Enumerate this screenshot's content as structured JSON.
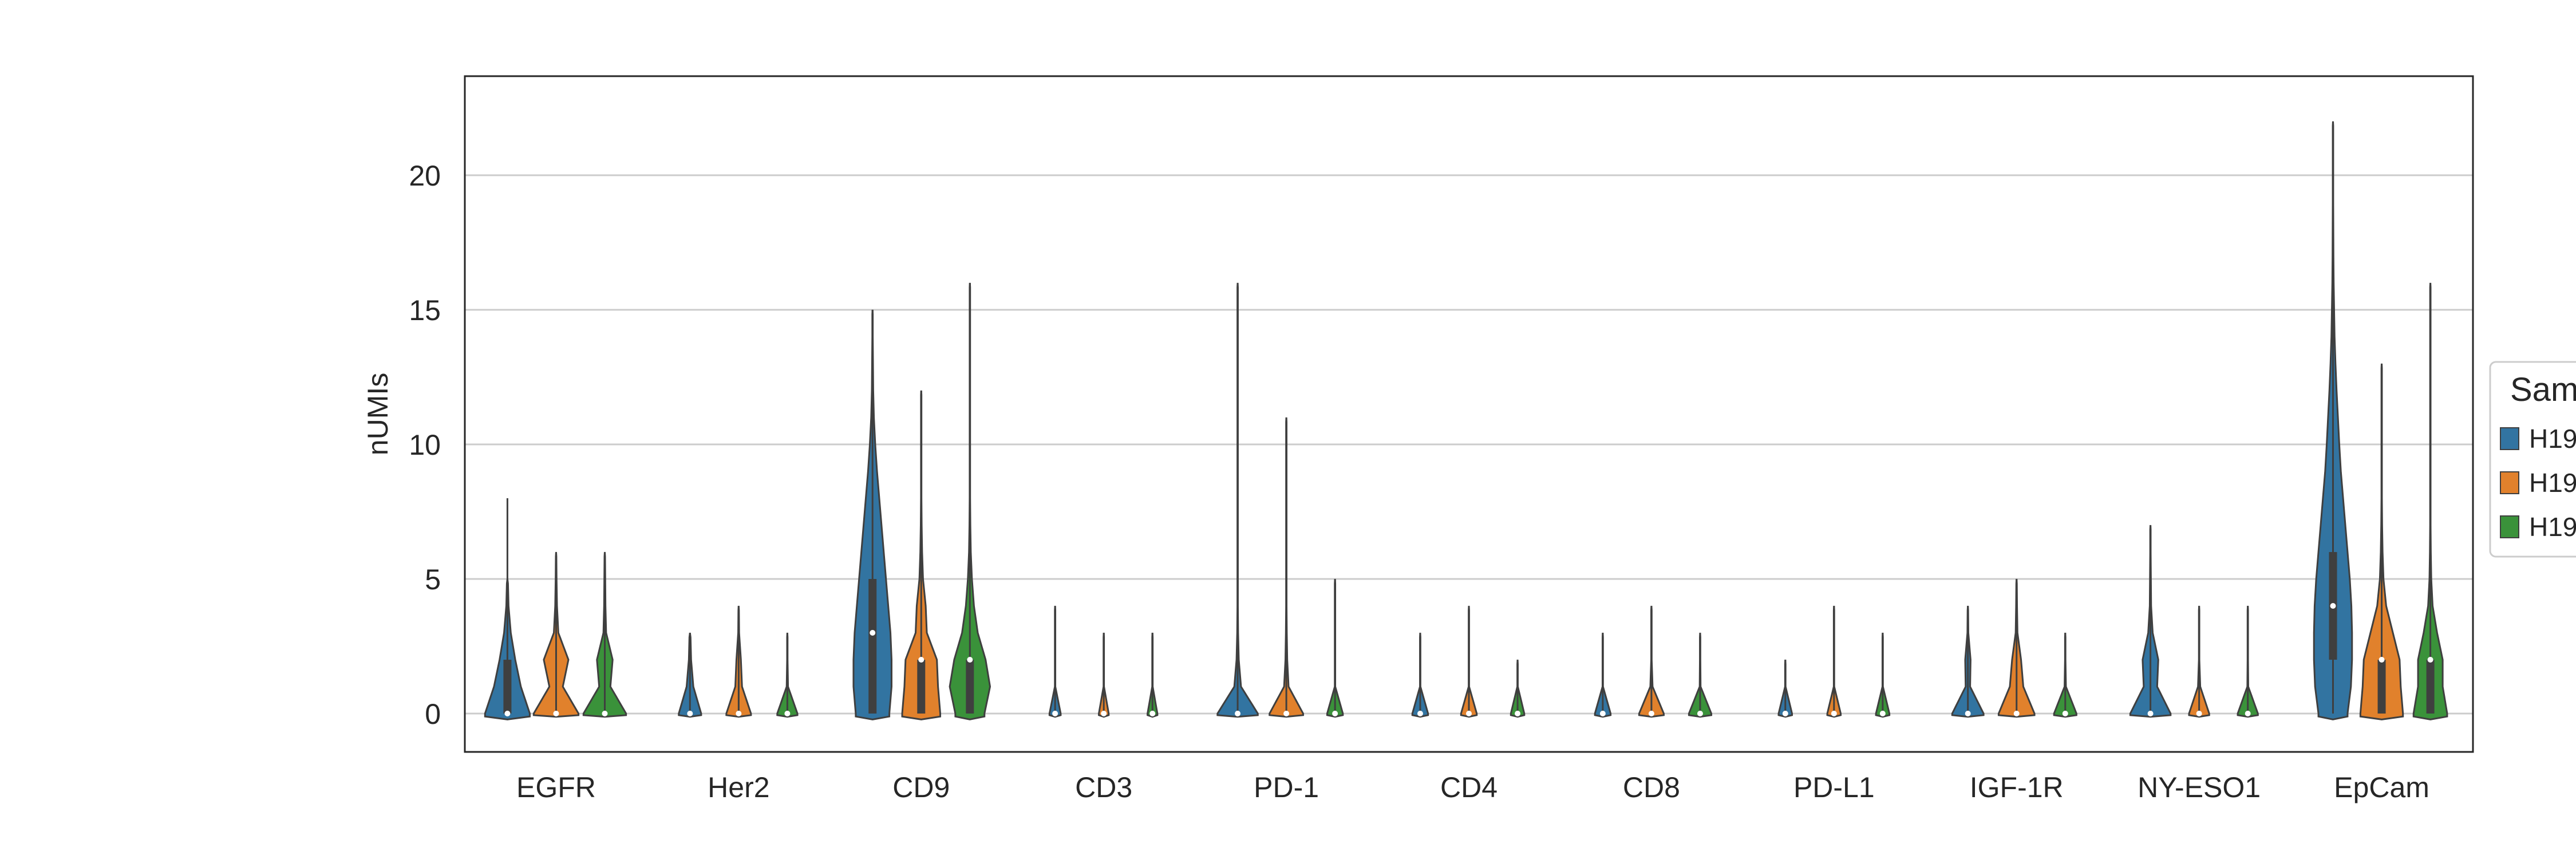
{
  "chart_data": {
    "type": "violin",
    "title": "",
    "xlabel": "",
    "ylabel": "nUMIs",
    "ylim": [
      -1.3,
      23.2
    ],
    "yticks": [
      0,
      5,
      10,
      15,
      20
    ],
    "grid": "horizontal",
    "categories": [
      "EGFR",
      "Her2",
      "CD9",
      "CD3",
      "PD-1",
      "CD4",
      "CD8",
      "PD-L1",
      "IGF-1R",
      "NY-ESO1",
      "EpCam"
    ],
    "legend": {
      "title": "Sam",
      "placement": "right",
      "entries": [
        "H19",
        "H19",
        "H19"
      ]
    },
    "colors": [
      "#3274a1",
      "#e1812c",
      "#3a923a"
    ],
    "series": [
      {
        "name": "H19",
        "color": "#3274a1",
        "values": [
          {
            "max": 8,
            "median": 0,
            "q1": 0,
            "q3": 2,
            "widths": [
              1.0,
              0.6,
              0.35,
              0.15,
              0.05,
              0.02
            ]
          },
          {
            "max": 3,
            "median": 0,
            "q1": 0,
            "q3": 0,
            "widths": [
              0.5,
              0.15,
              0.05,
              0.02
            ]
          },
          {
            "max": 15,
            "median": 3,
            "q1": 0,
            "q3": 5,
            "widths": [
              0.75,
              0.85,
              0.85,
              0.8,
              0.7,
              0.6,
              0.5,
              0.4,
              0.3,
              0.2,
              0.12,
              0.06,
              0.03,
              0.02,
              0.01,
              0.01
            ]
          },
          {
            "max": 4,
            "median": 0,
            "q1": 0,
            "q3": 0,
            "widths": [
              0.25,
              0.01,
              0.01,
              0.01,
              0.01
            ]
          },
          {
            "max": 16,
            "median": 0,
            "q1": 0,
            "q3": 0,
            "widths": [
              0.9,
              0.15,
              0.05,
              0.02,
              0.01,
              0.01,
              0.01,
              0.01,
              0.01,
              0.01,
              0.01,
              0.01,
              0.01,
              0.01,
              0.01,
              0.01,
              0.01
            ]
          },
          {
            "max": 3,
            "median": 0,
            "q1": 0,
            "q3": 0,
            "widths": [
              0.35,
              0.01,
              0.01,
              0.01
            ]
          },
          {
            "max": 3,
            "median": 0,
            "q1": 0,
            "q3": 0,
            "widths": [
              0.35,
              0.01,
              0.01,
              0.01
            ]
          },
          {
            "max": 2,
            "median": 0,
            "q1": 0,
            "q3": 0,
            "widths": [
              0.3,
              0.01,
              0.01
            ]
          },
          {
            "max": 4,
            "median": 0,
            "q1": 0,
            "q3": 0,
            "widths": [
              0.7,
              0.1,
              0.12,
              0.02,
              0.01
            ]
          },
          {
            "max": 7,
            "median": 0,
            "q1": 0,
            "q3": 0,
            "widths": [
              0.9,
              0.3,
              0.35,
              0.1,
              0.03,
              0.02,
              0.01,
              0.01
            ]
          },
          {
            "max": 22,
            "median": 4,
            "q1": 2,
            "q3": 6,
            "widths": [
              0.65,
              0.8,
              0.85,
              0.85,
              0.82,
              0.75,
              0.65,
              0.55,
              0.45,
              0.35,
              0.28,
              0.22,
              0.16,
              0.11,
              0.07,
              0.05,
              0.03,
              0.02,
              0.015,
              0.01,
              0.01,
              0.01,
              0.01
            ]
          }
        ]
      },
      {
        "name": "H19",
        "color": "#e1812c",
        "values": [
          {
            "max": 6,
            "median": 0,
            "q1": 0,
            "q3": 0,
            "widths": [
              1.0,
              0.3,
              0.55,
              0.1,
              0.04,
              0.02,
              0.01
            ]
          },
          {
            "max": 4,
            "median": 0,
            "q1": 0,
            "q3": 0,
            "widths": [
              0.55,
              0.15,
              0.1,
              0.02,
              0.01
            ]
          },
          {
            "max": 12,
            "median": 2,
            "q1": 0,
            "q3": 2,
            "widths": [
              0.85,
              0.75,
              0.7,
              0.25,
              0.2,
              0.08,
              0.04,
              0.02,
              0.01,
              0.01,
              0.01,
              0.01,
              0.01
            ]
          },
          {
            "max": 3,
            "median": 0,
            "q1": 0,
            "q3": 0,
            "widths": [
              0.22,
              0.01,
              0.01,
              0.01
            ]
          },
          {
            "max": 11,
            "median": 0,
            "q1": 0,
            "q3": 0,
            "widths": [
              0.75,
              0.1,
              0.04,
              0.02,
              0.01,
              0.01,
              0.01,
              0.01,
              0.01,
              0.01,
              0.01,
              0.01
            ]
          },
          {
            "max": 4,
            "median": 0,
            "q1": 0,
            "q3": 0,
            "widths": [
              0.35,
              0.01,
              0.01,
              0.01,
              0.01
            ]
          },
          {
            "max": 4,
            "median": 0,
            "q1": 0,
            "q3": 0,
            "widths": [
              0.55,
              0.05,
              0.01,
              0.01,
              0.01
            ]
          },
          {
            "max": 4,
            "median": 0,
            "q1": 0,
            "q3": 0,
            "widths": [
              0.3,
              0.01,
              0.01,
              0.01,
              0.01
            ]
          },
          {
            "max": 5,
            "median": 0,
            "q1": 0,
            "q3": 0,
            "widths": [
              0.8,
              0.3,
              0.2,
              0.04,
              0.02,
              0.01
            ]
          },
          {
            "max": 4,
            "median": 0,
            "q1": 0,
            "q3": 0,
            "widths": [
              0.45,
              0.05,
              0.01,
              0.01,
              0.01
            ]
          },
          {
            "max": 13,
            "median": 2,
            "q1": 0,
            "q3": 2,
            "widths": [
              0.95,
              0.85,
              0.8,
              0.5,
              0.2,
              0.08,
              0.04,
              0.02,
              0.01,
              0.01,
              0.01,
              0.01,
              0.01,
              0.01
            ]
          }
        ]
      },
      {
        "name": "H19",
        "color": "#3a923a",
        "values": [
          {
            "max": 6,
            "median": 0,
            "q1": 0,
            "q3": 0,
            "widths": [
              0.95,
              0.25,
              0.35,
              0.06,
              0.03,
              0.02,
              0.01
            ]
          },
          {
            "max": 3,
            "median": 0,
            "q1": 0,
            "q3": 0,
            "widths": [
              0.45,
              0.03,
              0.01,
              0.01
            ]
          },
          {
            "max": 16,
            "median": 2,
            "q1": 0,
            "q3": 2,
            "widths": [
              0.65,
              0.9,
              0.7,
              0.35,
              0.18,
              0.09,
              0.04,
              0.02,
              0.01,
              0.01,
              0.01,
              0.01,
              0.01,
              0.01,
              0.01,
              0.01,
              0.01
            ]
          },
          {
            "max": 3,
            "median": 0,
            "q1": 0,
            "q3": 0,
            "widths": [
              0.22,
              0.01,
              0.01,
              0.01
            ]
          },
          {
            "max": 5,
            "median": 0,
            "q1": 0,
            "q3": 0,
            "widths": [
              0.35,
              0.01,
              0.01,
              0.01,
              0.01,
              0.01
            ]
          },
          {
            "max": 2,
            "median": 0,
            "q1": 0,
            "q3": 0,
            "widths": [
              0.3,
              0.01,
              0.01
            ]
          },
          {
            "max": 3,
            "median": 0,
            "q1": 0,
            "q3": 0,
            "widths": [
              0.5,
              0.02,
              0.01,
              0.01
            ]
          },
          {
            "max": 3,
            "median": 0,
            "q1": 0,
            "q3": 0,
            "widths": [
              0.3,
              0.01,
              0.01,
              0.01
            ]
          },
          {
            "max": 3,
            "median": 0,
            "q1": 0,
            "q3": 0,
            "widths": [
              0.5,
              0.03,
              0.01,
              0.01
            ]
          },
          {
            "max": 4,
            "median": 0,
            "q1": 0,
            "q3": 0,
            "widths": [
              0.45,
              0.02,
              0.01,
              0.01,
              0.01
            ]
          },
          {
            "max": 16,
            "median": 2,
            "q1": 0,
            "q3": 2,
            "widths": [
              0.75,
              0.55,
              0.55,
              0.3,
              0.1,
              0.04,
              0.02,
              0.01,
              0.01,
              0.01,
              0.01,
              0.01,
              0.01,
              0.01,
              0.01,
              0.01,
              0.01
            ]
          }
        ]
      }
    ]
  }
}
